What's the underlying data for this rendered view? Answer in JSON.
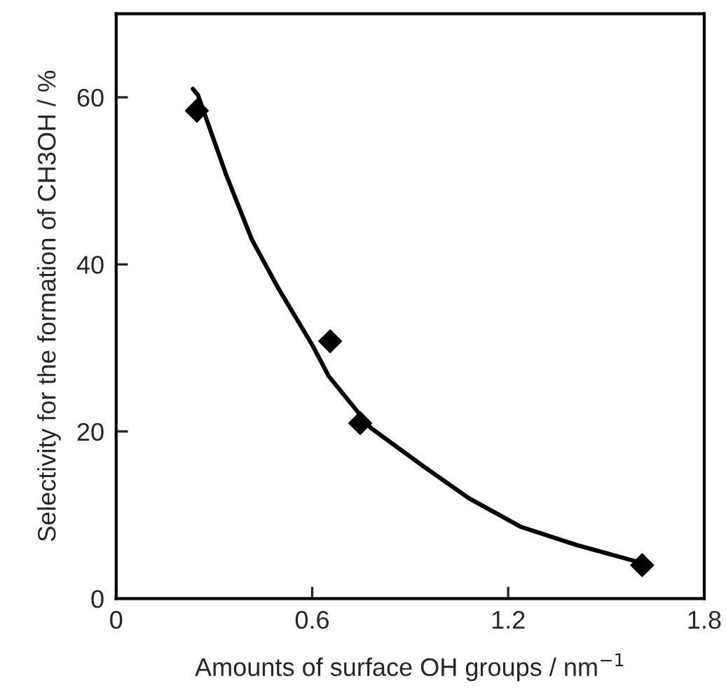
{
  "chart_data": {
    "type": "scatter",
    "xlabel": "Amounts of surface OH groups / nm$^{−1}$",
    "ylabel": "Selectivity for the formation of CH3OH / %",
    "xlim": [
      0,
      1.8
    ],
    "ylim": [
      0,
      70
    ],
    "xticks": [
      0,
      0.6,
      1.2,
      1.8
    ],
    "yticks": [
      0,
      20,
      40,
      60
    ],
    "grid": false,
    "marker": "diamond",
    "series": [
      {
        "color": "#000000",
        "x": [
          0.247,
          0.655,
          0.747,
          1.61
        ],
        "values": [
          58.4,
          30.8,
          21.0,
          4.0
        ]
      },
      {
        "type": "line",
        "color": "#000000",
        "line_style": "solid",
        "marker": "none",
        "x": [
          0.235,
          0.25,
          0.336,
          0.415,
          0.494,
          0.601,
          0.651,
          0.78,
          0.938,
          1.08,
          1.238,
          1.41,
          1.596
        ],
        "values": [
          61,
          60.3,
          50.8,
          43.0,
          37.3,
          30.3,
          26.6,
          20.4,
          15.9,
          12.0,
          8.6,
          6.4,
          4.4
        ]
      }
    ]
  }
}
